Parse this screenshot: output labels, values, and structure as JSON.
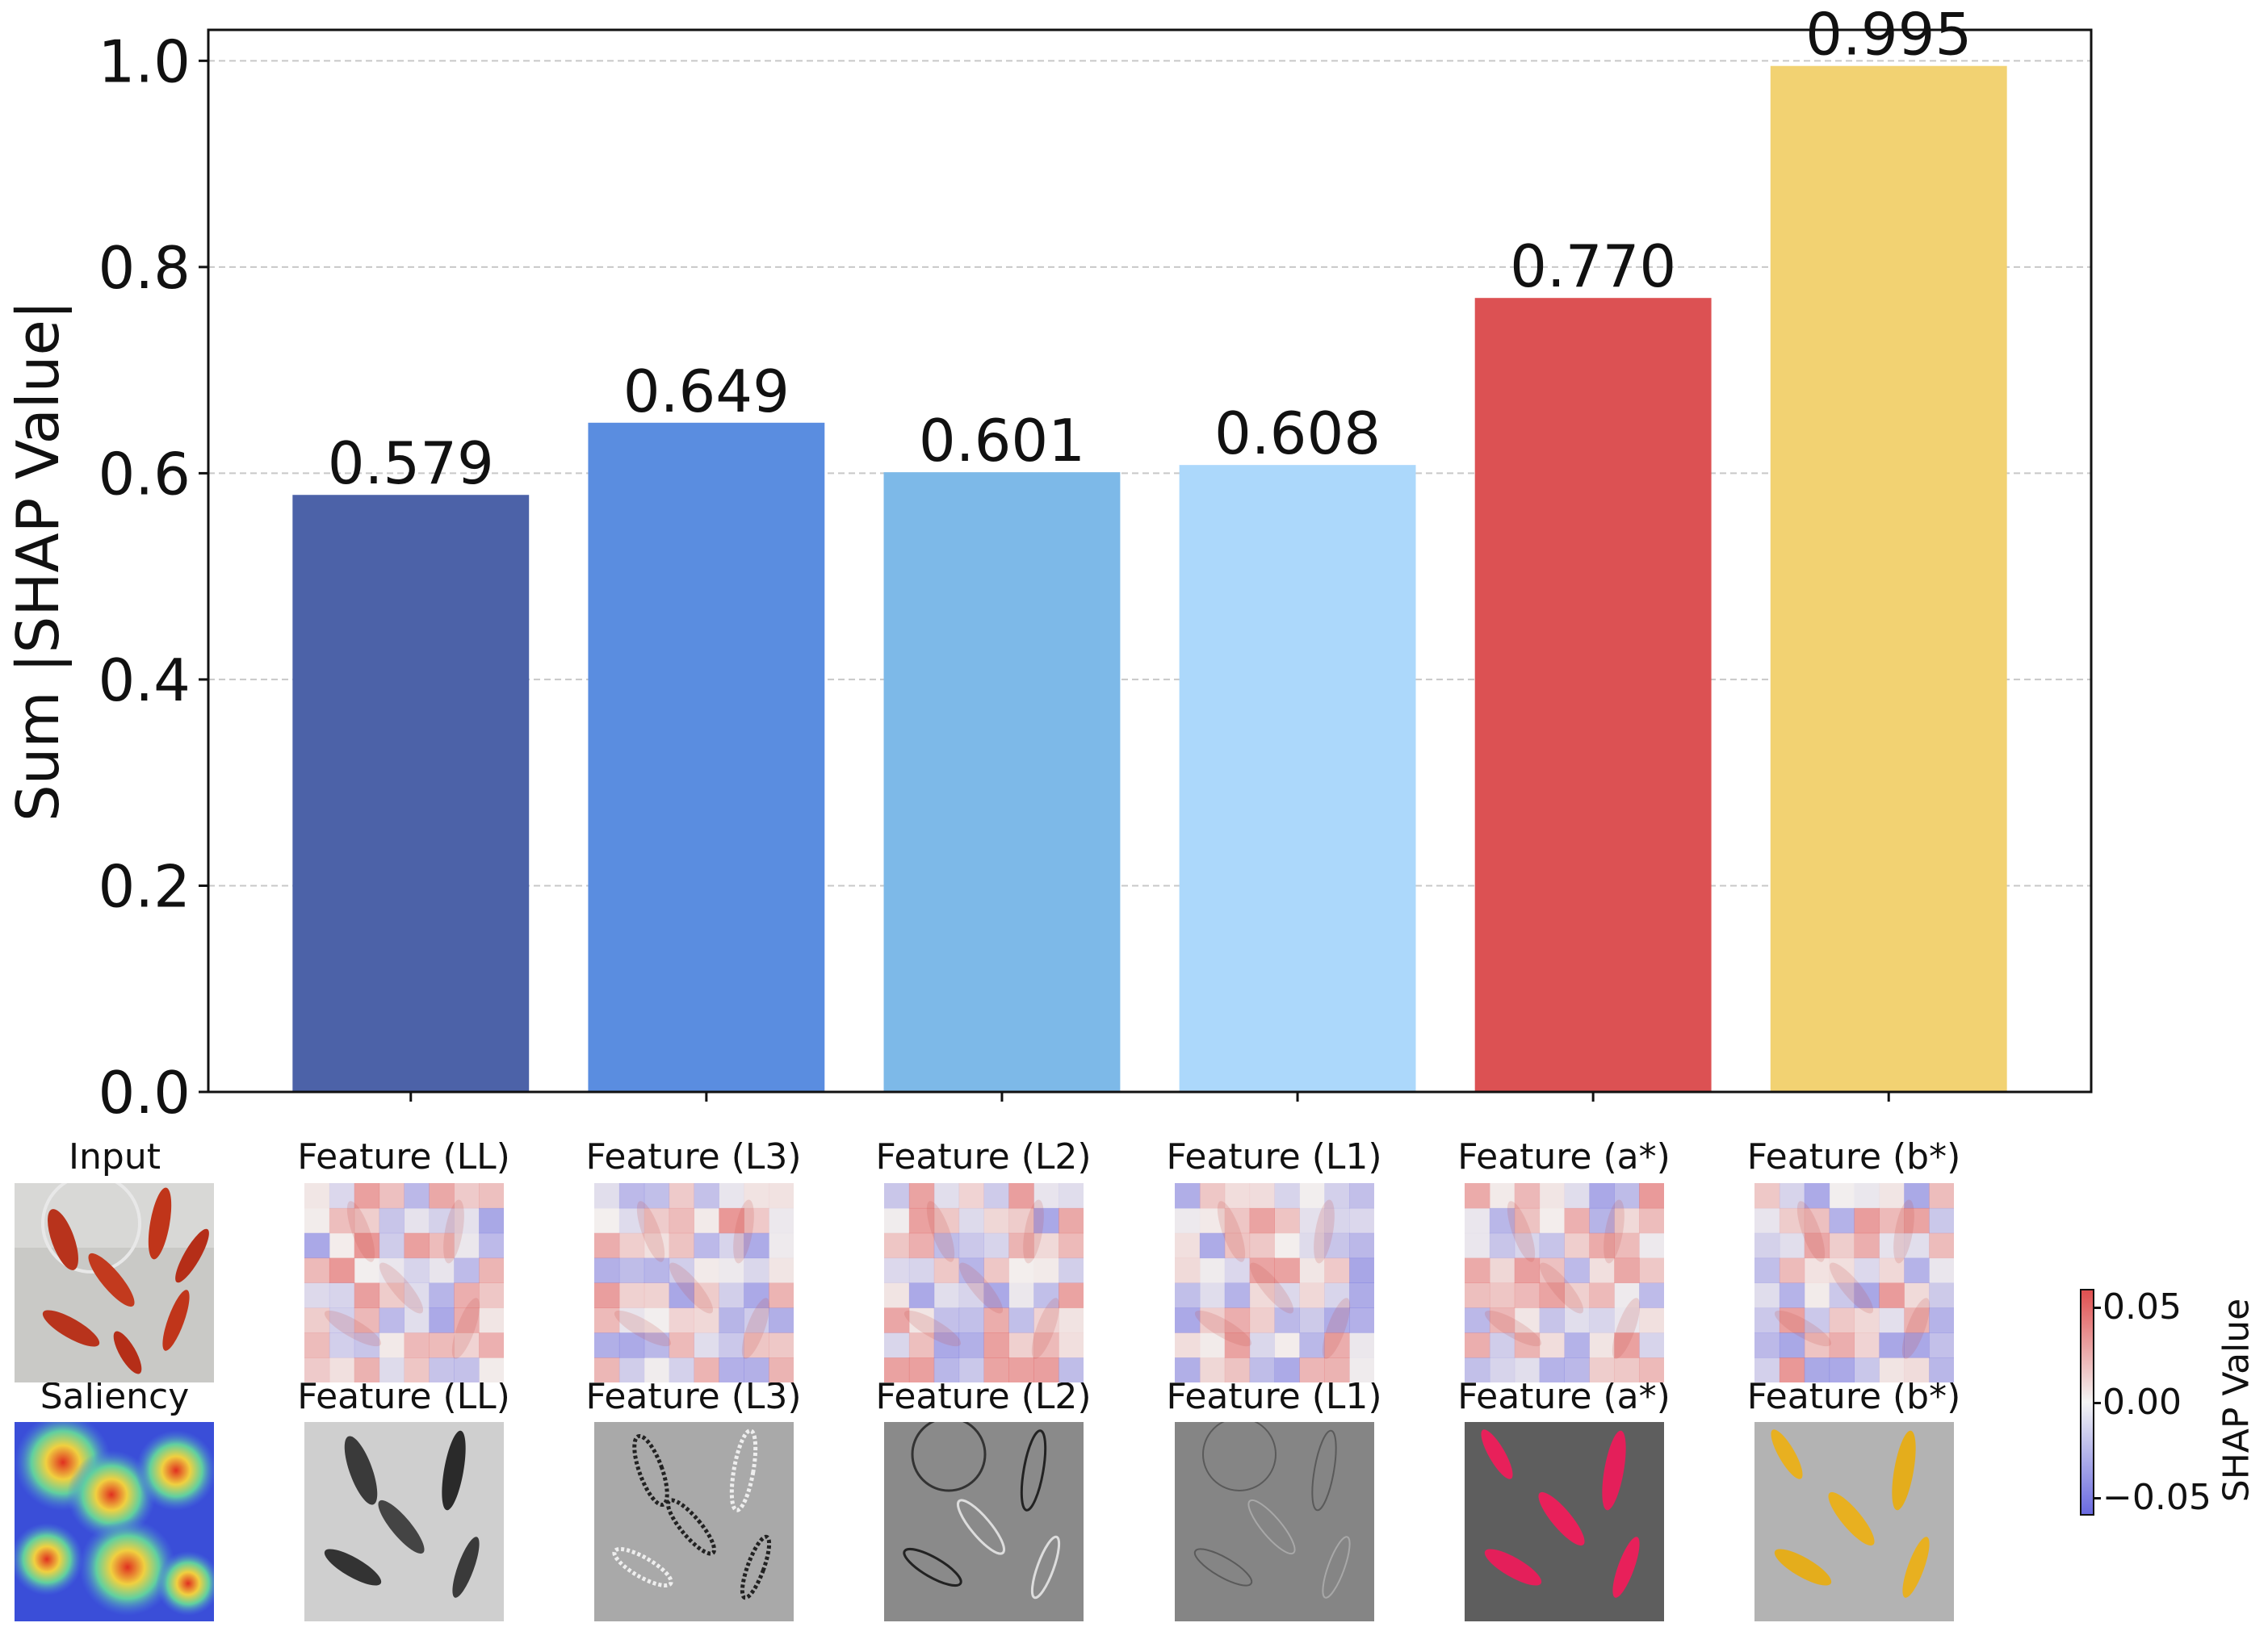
{
  "chart_data": {
    "type": "bar",
    "categories": [
      "Feature (LL)",
      "Feature (L3)",
      "Feature (L2)",
      "Feature (L1)",
      "Feature (a*)",
      "Feature (b*)"
    ],
    "values": [
      0.579,
      0.649,
      0.601,
      0.608,
      0.77,
      0.995
    ],
    "value_labels": [
      "0.579",
      "0.649",
      "0.601",
      "0.608",
      "0.770",
      "0.995"
    ],
    "colors": [
      "#4c62a8",
      "#5a8de0",
      "#7db9e8",
      "#acd8fb",
      "#dc5153",
      "#f2d272"
    ],
    "ylabel": "Sum |SHAP Value|",
    "xlabel": "",
    "title": "",
    "ylim": [
      0,
      1.03
    ],
    "yticks": [
      "0.0",
      "0.2",
      "0.4",
      "0.6",
      "0.8",
      "1.0"
    ],
    "ytick_values": [
      0,
      0.2,
      0.4,
      0.6,
      0.8,
      1.0
    ],
    "grid": "horizontal-dashed",
    "legend": "none"
  },
  "image_panels": {
    "row1_labels": [
      "Input",
      "Feature (LL)",
      "Feature (L3)",
      "Feature (L2)",
      "Feature (L1)",
      "Feature (a*)",
      "Feature (b*)"
    ],
    "row2_labels": [
      "Saliency",
      "Feature (LL)",
      "Feature (L3)",
      "Feature (L2)",
      "Feature (L1)",
      "Feature (a*)",
      "Feature (b*)"
    ]
  },
  "colorbar": {
    "label": "SHAP Value",
    "ticks": [
      "0.05",
      "0.00",
      "−0.05"
    ],
    "colors": [
      "#e05050",
      "#f4f4f4",
      "#6a6ae0"
    ]
  }
}
